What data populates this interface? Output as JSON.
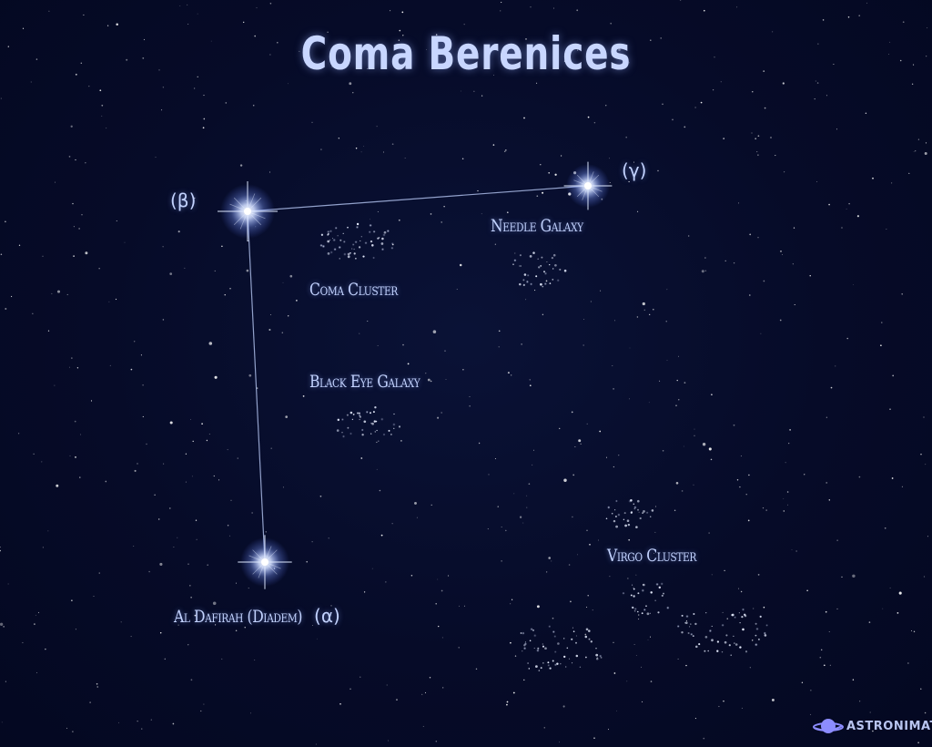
{
  "title": "Coma Berenices",
  "stars": [
    {
      "id": "beta",
      "label": "(β)"
    },
    {
      "id": "gamma",
      "label": "(γ)"
    },
    {
      "id": "alpha",
      "name": "Al Dafirah (Diadem)",
      "letter": "(α)"
    }
  ],
  "deep_sky_objects": [
    {
      "id": "coma-cluster",
      "label": "Coma Cluster"
    },
    {
      "id": "needle-galaxy",
      "label": "Needle Galaxy"
    },
    {
      "id": "black-eye-galaxy",
      "label": "Black Eye Galaxy"
    },
    {
      "id": "virgo-cluster",
      "label": "Virgo Cluster"
    }
  ],
  "brand": {
    "name": "ASTRONIMATE",
    "logo_icon": "planet-icon",
    "color": "#8c8cff"
  },
  "colors": {
    "background": "#060b28",
    "label": "#c3d3ff",
    "line": "#aabbe6",
    "star_glow": "#9fb6ff"
  }
}
